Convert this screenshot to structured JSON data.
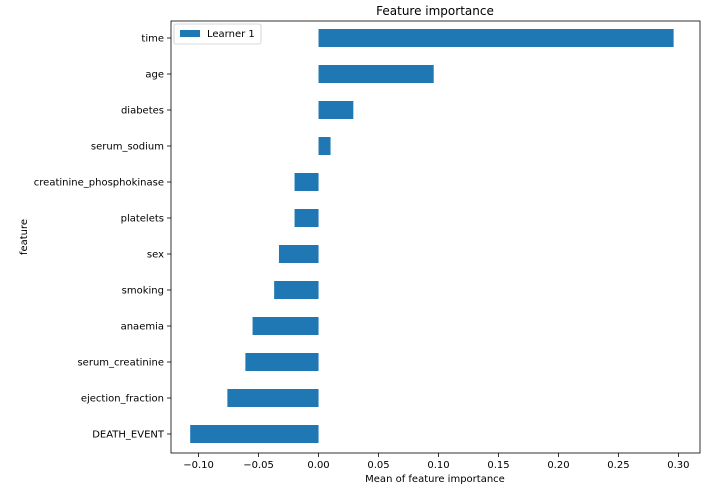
{
  "chart_data": {
    "type": "bar",
    "orientation": "horizontal",
    "title": "Feature importance",
    "xlabel": "Mean of feature importance",
    "ylabel": "feature",
    "xlim": [
      -0.123,
      0.318
    ],
    "xticks": [
      -0.1,
      -0.05,
      0.0,
      0.05,
      0.1,
      0.15,
      0.2,
      0.25,
      0.3
    ],
    "xtick_labels": [
      "−0.10",
      "−0.05",
      "0.00",
      "0.05",
      "0.10",
      "0.15",
      "0.20",
      "0.25",
      "0.30"
    ],
    "grid": false,
    "legend_position": "top-left",
    "bar_color": "#1f77b4",
    "categories": [
      "time",
      "age",
      "diabetes",
      "serum_sodium",
      "creatinine_phosphokinase",
      "platelets",
      "sex",
      "smoking",
      "anaemia",
      "serum_creatinine",
      "ejection_fraction",
      "DEATH_EVENT"
    ],
    "series": [
      {
        "name": "Learner 1",
        "values": [
          0.296,
          0.096,
          0.029,
          0.01,
          -0.02,
          -0.02,
          -0.033,
          -0.037,
          -0.055,
          -0.061,
          -0.076,
          -0.107
        ]
      }
    ]
  }
}
